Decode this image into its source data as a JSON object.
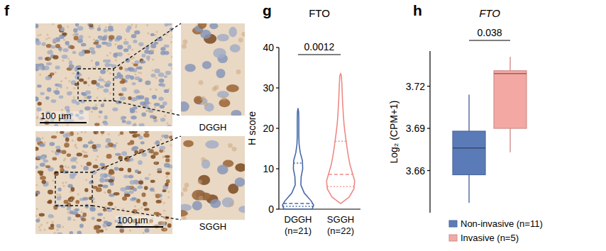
{
  "panel_labels": [
    "f",
    "g",
    "h"
  ],
  "image_panel": {
    "scale_bar": "100 µm",
    "images": [
      {
        "label": "DGGH"
      },
      {
        "label": "SGGH"
      }
    ]
  },
  "chart_data": [
    {
      "type": "violin",
      "title": "FTO",
      "y_label": "H score",
      "categories": [
        "DGGH (n=21)",
        "SGGH (n=22)"
      ],
      "colors": [
        "#4568a8",
        "#ee8a85"
      ],
      "ylim": [
        0,
        40
      ],
      "yticks": [
        0,
        10,
        20,
        30,
        40
      ],
      "violins": [
        {
          "q1": 0.7,
          "median": 1.4,
          "q3": 11.4,
          "kde_y": [
            0,
            1,
            2,
            4,
            6,
            8,
            10,
            12,
            14,
            16,
            18,
            20,
            22,
            24,
            25
          ],
          "kde_width": [
            0.9,
            1.0,
            0.85,
            0.4,
            0.18,
            0.2,
            0.3,
            0.28,
            0.14,
            0.07,
            0.05,
            0.05,
            0.05,
            0.04,
            0
          ]
        },
        {
          "q1": 5.6,
          "median": 8.6,
          "q3": 16.8,
          "kde_y": [
            1.4,
            3,
            5,
            7,
            9,
            11,
            13,
            15,
            17,
            19,
            21,
            23,
            25,
            27,
            29,
            31,
            33,
            33.5
          ],
          "kde_width": [
            0,
            0.55,
            0.85,
            0.9,
            0.75,
            0.6,
            0.5,
            0.42,
            0.35,
            0.28,
            0.22,
            0.18,
            0.15,
            0.12,
            0.1,
            0.08,
            0.05,
            0
          ]
        }
      ],
      "annotations": [
        {
          "text": "0.0012"
        }
      ]
    },
    {
      "type": "box",
      "title": "FTO",
      "y_label": "Log₂ (CPM+1)",
      "ylim": [
        3.63,
        3.745
      ],
      "yticks": [
        3.66,
        3.69,
        3.72
      ],
      "tick_labels": "y",
      "legend": "bottom",
      "series": [
        {
          "name": "Non-invasive (n=11)",
          "color": "#5b7bb8",
          "min": 3.637,
          "q1": 3.657,
          "median": 3.676,
          "q3": 3.688,
          "max": 3.714
        },
        {
          "name": "Invasive (n=5)",
          "color": "#f4a8a3",
          "min": 3.673,
          "q1": 3.69,
          "median": 3.729,
          "q3": 3.731,
          "max": 3.741
        }
      ],
      "annotations": [
        {
          "text": "0.038"
        }
      ]
    }
  ]
}
